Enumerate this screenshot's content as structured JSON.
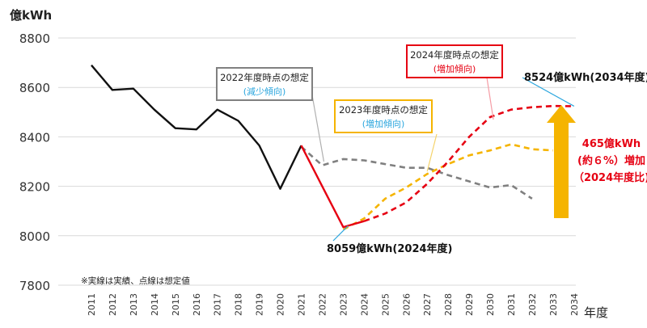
{
  "chart_data": {
    "type": "line",
    "ylabel": "億kWh",
    "xlabel": "年度",
    "ylim": [
      7800,
      8800
    ],
    "yticks": [
      7800,
      8000,
      8200,
      8400,
      8600,
      8800
    ],
    "categories": [
      "2011",
      "2012",
      "2013",
      "2014",
      "2015",
      "2016",
      "2017",
      "2018",
      "2019",
      "2020",
      "2021",
      "2022",
      "2023",
      "2024",
      "2025",
      "2026",
      "2027",
      "2028",
      "2029",
      "2030",
      "2031",
      "2032",
      "2033",
      "2034"
    ],
    "grid": "horizontal",
    "series": [
      {
        "key": "actual",
        "style": "solid",
        "color": "#111111",
        "x": [
          "2011",
          "2012",
          "2013",
          "2014",
          "2015",
          "2016",
          "2017",
          "2018",
          "2019",
          "2020",
          "2021"
        ],
        "values": [
          8690,
          8590,
          8595,
          8510,
          8435,
          8430,
          8510,
          8465,
          8365,
          8190,
          8365
        ]
      },
      {
        "key": "actual_2024_view",
        "style": "solid",
        "color": "#e60012",
        "x": [
          "2021",
          "2022",
          "2023",
          "2024"
        ],
        "values": [
          8365,
          8200,
          8035,
          8059
        ]
      },
      {
        "key": "forecast_2022",
        "style": "dashed",
        "color": "#808080",
        "x": [
          "2021",
          "2022",
          "2023",
          "2024",
          "2025",
          "2026",
          "2027",
          "2028",
          "2029",
          "2030",
          "2031",
          "2032"
        ],
        "values": [
          8360,
          8285,
          8310,
          8305,
          8290,
          8275,
          8275,
          8245,
          8220,
          8195,
          8205,
          8150
        ]
      },
      {
        "key": "forecast_2023",
        "style": "dashed",
        "color": "#f5b400",
        "x": [
          "2023",
          "2024",
          "2025",
          "2026",
          "2027",
          "2028",
          "2029",
          "2030",
          "2031",
          "2032",
          "2033"
        ],
        "values": [
          8025,
          8070,
          8150,
          8195,
          8250,
          8290,
          8325,
          8345,
          8370,
          8350,
          8345
        ]
      },
      {
        "key": "forecast_2024",
        "style": "dashed",
        "color": "#e60012",
        "x": [
          "2024",
          "2025",
          "2026",
          "2027",
          "2028",
          "2029",
          "2030",
          "2031",
          "2032",
          "2033",
          "2034"
        ],
        "values": [
          8059,
          8090,
          8135,
          8210,
          8300,
          8400,
          8480,
          8510,
          8520,
          8525,
          8524
        ]
      }
    ],
    "callouts": {
      "c2022": {
        "title": "2022年度時点の想定",
        "sub": "(減少傾向)",
        "border": "#808080",
        "subcolor": "#2ba6de"
      },
      "c2023": {
        "title": "2023年度時点の想定",
        "sub": "(増加傾向)",
        "border": "#f5b400",
        "subcolor": "#2ba6de"
      },
      "c2024": {
        "title": "2024年度時点の想定",
        "sub": "(増加傾向)",
        "border": "#e60012",
        "subcolor": "#e60012"
      }
    },
    "annotations": {
      "label_2034": "8524億kWh(2034年度)",
      "label_2024": "8059億kWh(2024年度)",
      "increase_lines": [
        "465億kWh",
        "(約６%）増加",
        "（2024年度比)"
      ],
      "increase_color": "#e60012",
      "arrow_color": "#f5b400",
      "footnote": "※実線は実績、点線は想定値"
    }
  }
}
